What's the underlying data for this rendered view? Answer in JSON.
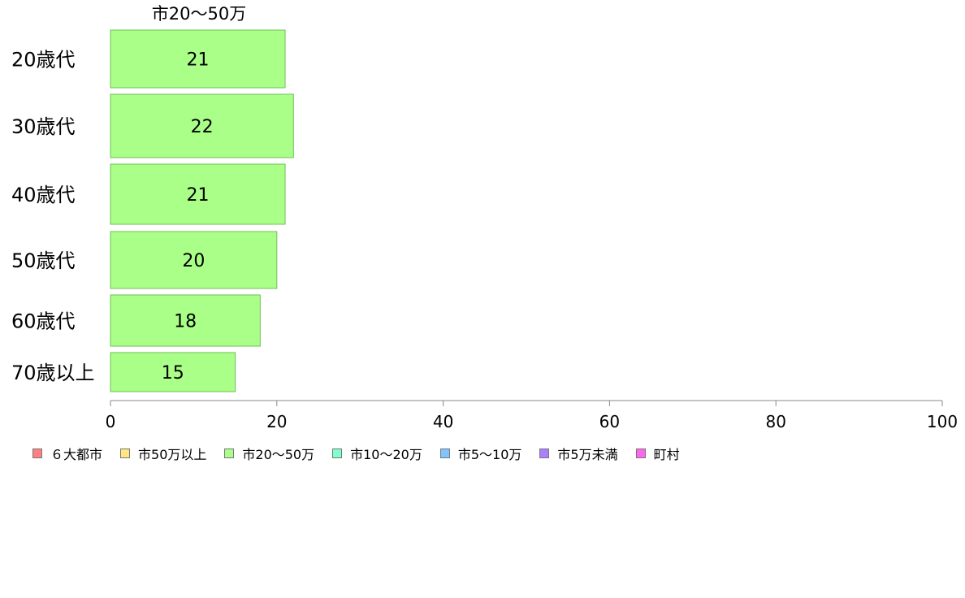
{
  "chart_data": {
    "type": "bar",
    "orientation": "horizontal",
    "title": "市20〜50万",
    "categories": [
      "20歳代",
      "30歳代",
      "40歳代",
      "50歳代",
      "60歳代",
      "70歳以上"
    ],
    "values": [
      21,
      22,
      21,
      20,
      18,
      15
    ],
    "xlim": [
      0,
      100
    ],
    "xticks": [
      "0",
      "20",
      "40",
      "60",
      "80",
      "100"
    ],
    "bar_color": "#aaff88",
    "bar_stroke": "#6fbf55",
    "axis_color": "#888888",
    "grid": false
  },
  "legend": [
    {
      "label": "６大都市",
      "color": "#ff8080"
    },
    {
      "label": "市50万以上",
      "color": "#ffe680"
    },
    {
      "label": "市20〜50万",
      "color": "#aaff88"
    },
    {
      "label": "市10〜20万",
      "color": "#80ffcc"
    },
    {
      "label": "市5〜10万",
      "color": "#80c4ff"
    },
    {
      "label": "市5万未満",
      "color": "#aa80ff"
    },
    {
      "label": "町村",
      "color": "#ff66ee"
    }
  ],
  "legend_position": "bottom-left"
}
